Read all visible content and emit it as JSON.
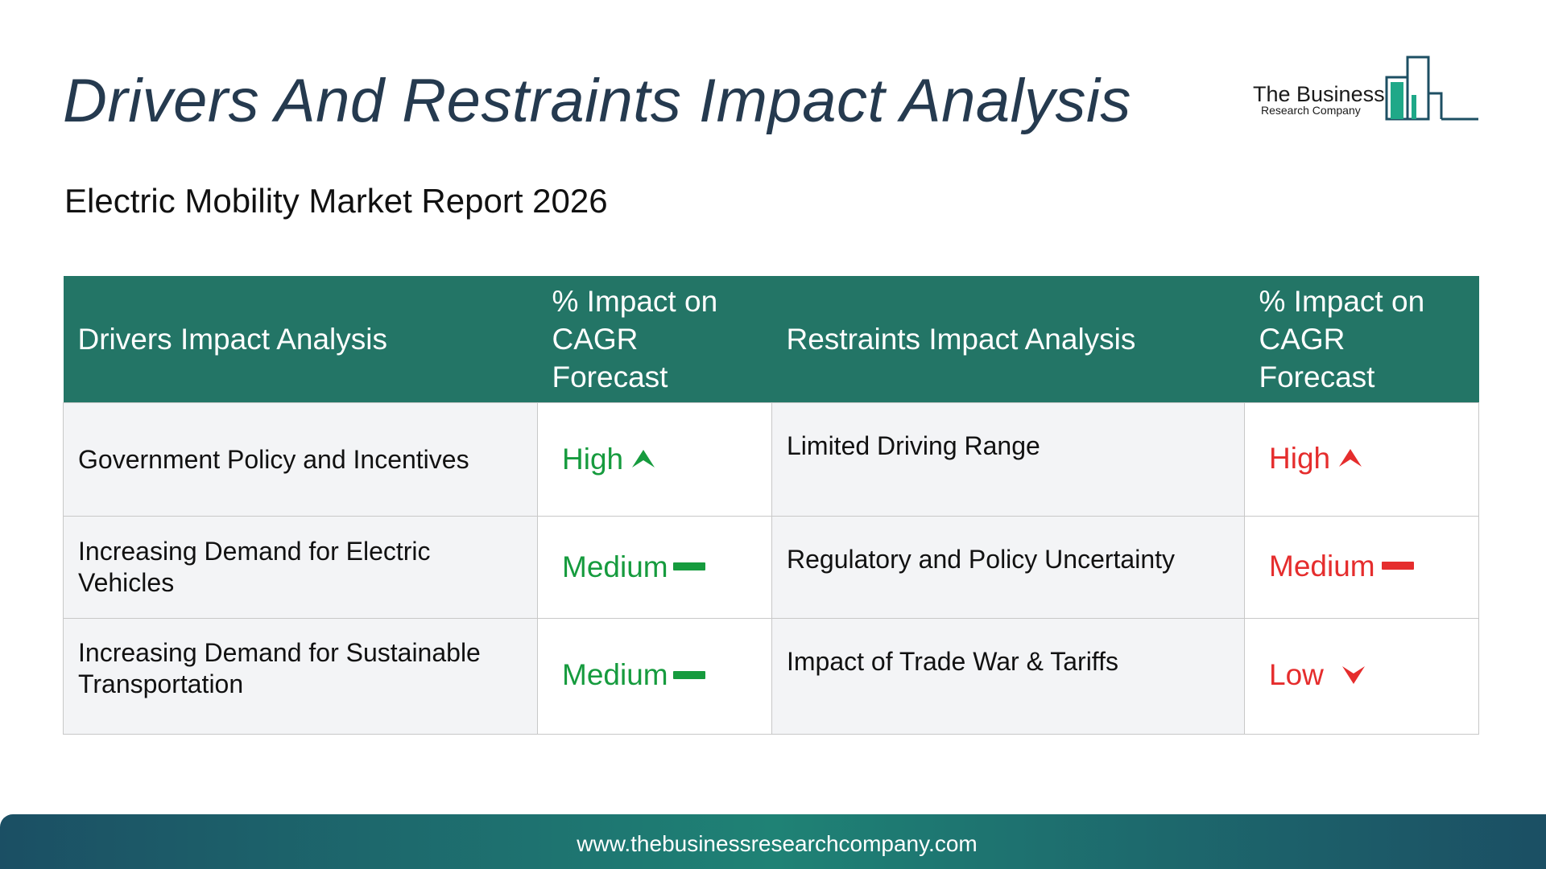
{
  "header": {
    "title": "Drivers And Restraints Impact Analysis",
    "subtitle": "Electric Mobility Market Report 2026"
  },
  "logo": {
    "name": "The Business",
    "sub": "Research Company"
  },
  "table": {
    "columns": {
      "drivers": "Drivers Impact Analysis",
      "driver_impact_line1": "% Impact on",
      "driver_impact_line2": "CAGR Forecast",
      "restraints": "Restraints Impact Analysis",
      "restraint_impact_line1": "% Impact on",
      "restraint_impact_line2": "CAGR Forecast"
    },
    "rows": [
      {
        "driver": "Government Policy and Incentives",
        "driver_impact": "High",
        "driver_trend": "up",
        "restraint": "Limited Driving Range",
        "restraint_impact": "High",
        "restraint_trend": "up"
      },
      {
        "driver": "Increasing Demand for Electric Vehicles",
        "driver_impact": "Medium",
        "driver_trend": "flat",
        "restraint": "Regulatory and Policy Uncertainty",
        "restraint_impact": "Medium",
        "restraint_trend": "flat"
      },
      {
        "driver": "Increasing Demand for Sustainable Transportation",
        "driver_impact": "Medium",
        "driver_trend": "flat",
        "restraint": "Impact of Trade War & Tariffs",
        "restraint_impact": "Low",
        "restraint_trend": "down"
      }
    ]
  },
  "colors": {
    "header_bg": "#237566",
    "driver_impact": "#169b3e",
    "restraint_impact": "#e52d2d",
    "title": "#253a4f"
  },
  "icons": {
    "up": "arrow-up-icon",
    "flat": "dash-icon",
    "down": "arrow-down-icon"
  },
  "footer": {
    "url": "www.thebusinessresearchcompany.com"
  }
}
